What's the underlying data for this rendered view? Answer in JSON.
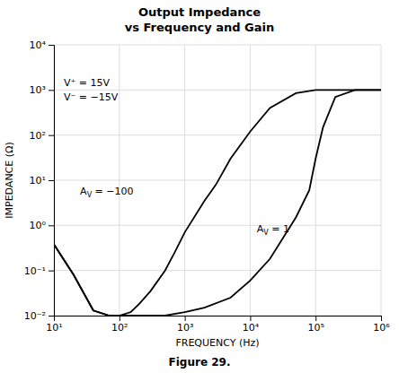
{
  "chart_data": {
    "type": "line",
    "title": "Output Impedance",
    "subtitle": "vs Frequency and Gain",
    "x_label": "FREQUENCY  (Hz)",
    "y_label": "IMPEDANCE  (Ω)",
    "log": true,
    "grid": true,
    "xlim": [
      10,
      1000000
    ],
    "ylim": [
      0.01,
      10000
    ],
    "xticks": [
      {
        "value": 10,
        "label": "10¹"
      },
      {
        "value": 100,
        "label": "10²"
      },
      {
        "value": 1000,
        "label": "10³"
      },
      {
        "value": 10000,
        "label": "10⁴"
      },
      {
        "value": 100000,
        "label": "10⁵"
      },
      {
        "value": 1000000,
        "label": "10⁶"
      }
    ],
    "yticks": [
      {
        "value": 0.01,
        "label": "10⁻²"
      },
      {
        "value": 0.1,
        "label": "10⁻¹"
      },
      {
        "value": 1,
        "label": "10⁰"
      },
      {
        "value": 10,
        "label": "10¹"
      },
      {
        "value": 100,
        "label": "10²"
      },
      {
        "value": 1000,
        "label": "10³"
      },
      {
        "value": 10000,
        "label": "10⁴"
      }
    ],
    "series": [
      {
        "color": "#000000",
        "x": [
          10,
          20,
          40,
          70,
          100,
          150,
          200,
          300,
          500,
          700,
          1000,
          2000,
          3000,
          5000,
          10000,
          20000,
          50000,
          100000,
          200000,
          500000,
          1000000
        ],
        "values": [
          0.38,
          0.08,
          0.013,
          0.01,
          0.01,
          0.012,
          0.018,
          0.035,
          0.1,
          0.25,
          0.7,
          3.5,
          8.0,
          30.0,
          120.0,
          400.0,
          850.0,
          1000.0,
          1000.0,
          1000.0,
          1000.0
        ]
      },
      {
        "color": "#000000",
        "x": [
          10,
          20,
          40,
          70,
          100,
          200,
          500,
          1000,
          2000,
          5000,
          10000,
          20000,
          50000,
          80000,
          100000,
          130000,
          200000,
          400000,
          700000,
          1000000
        ],
        "values": [
          0.38,
          0.08,
          0.013,
          0.01,
          0.01,
          0.01,
          0.01,
          0.012,
          0.015,
          0.025,
          0.06,
          0.18,
          1.5,
          6.0,
          30.0,
          150.0,
          700.0,
          1000.0,
          1000.0,
          1000.0
        ]
      }
    ],
    "annotations": [
      {
        "text": "V⁺ = 15V"
      },
      {
        "text": "V⁻ = −15V"
      },
      {
        "text": "AV = −100"
      },
      {
        "text": "AV = 1"
      },
      {
        "text": "Figure 29."
      }
    ]
  }
}
